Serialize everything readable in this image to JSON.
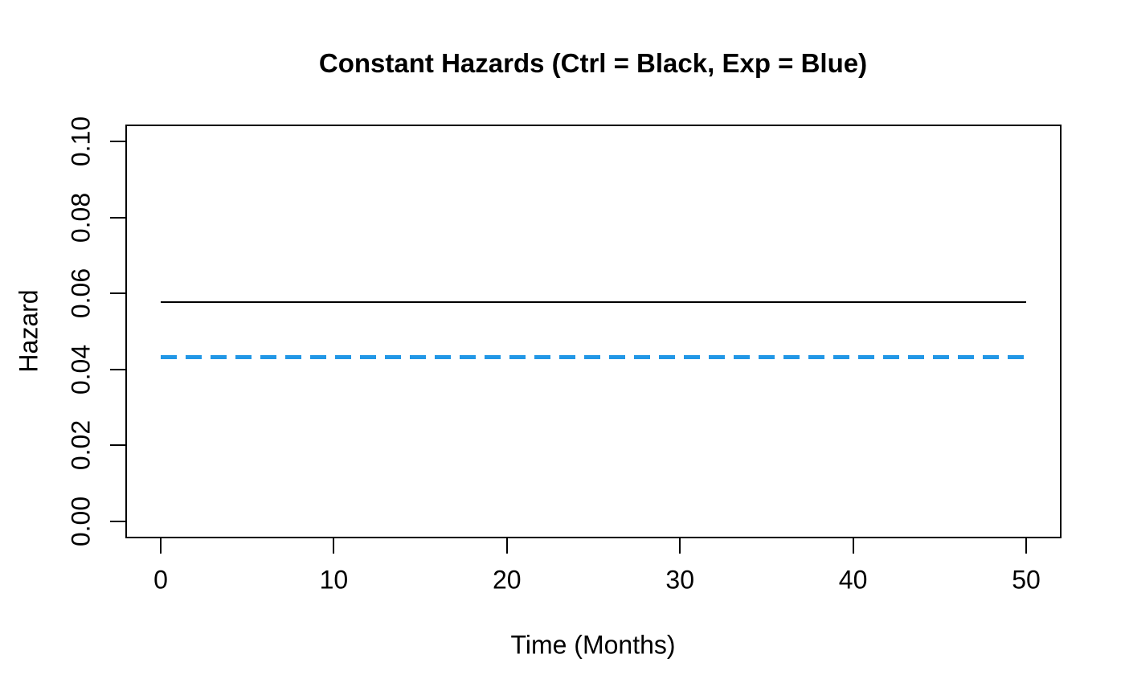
{
  "figure": {
    "background": "#ffffff"
  },
  "chart_data": {
    "type": "line",
    "title": "Constant Hazards (Ctrl = Black, Exp = Blue)",
    "xlabel": "Time (Months)",
    "ylabel": "Hazard",
    "xlim": [
      0,
      50
    ],
    "ylim": [
      0,
      0.1
    ],
    "xticks": [
      0,
      10,
      20,
      30,
      40,
      50
    ],
    "xtick_labels": [
      "0",
      "10",
      "20",
      "30",
      "40",
      "50"
    ],
    "yticks": [
      0.0,
      0.02,
      0.04,
      0.06,
      0.08,
      0.1
    ],
    "ytick_labels": [
      "0.00",
      "0.02",
      "0.04",
      "0.06",
      "0.08",
      "0.10"
    ],
    "grid": false,
    "legend_position": "none",
    "axis_color": "#000000",
    "series": [
      {
        "name": "Control",
        "color": "#000000",
        "line_style": "solid",
        "line_width": 2,
        "x": [
          0,
          50
        ],
        "y": [
          0.0578,
          0.0578
        ]
      },
      {
        "name": "Experimental",
        "color": "#2297E6",
        "line_style": "dashed",
        "line_width": 5,
        "dash_on": 20,
        "dash_off": 11,
        "x": [
          0,
          50
        ],
        "y": [
          0.0433,
          0.0433
        ]
      }
    ]
  }
}
